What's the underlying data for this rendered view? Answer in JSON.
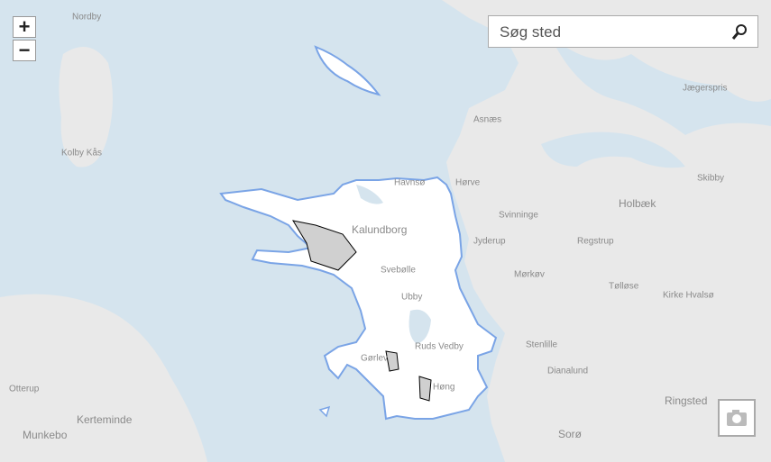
{
  "search": {
    "placeholder": "Søg sted"
  },
  "controls": {
    "zoom_in": "+",
    "zoom_out": "−"
  },
  "map": {
    "labels": [
      "Nordby",
      "Jægerspris",
      "Asnæs",
      "Kolby Kås",
      "Havnsø",
      "Hørve",
      "Holbæk",
      "Kalundborg",
      "Svinninge",
      "Jyderup",
      "Regstrup",
      "Svebølle",
      "Mørkøv",
      "Tølløse",
      "Kirke Hvalsø",
      "Ubby",
      "Ruds Vedby",
      "Gørlev",
      "Høng",
      "Stenlille",
      "Dianalund",
      "Ringsted",
      "Sorø",
      "Otterup",
      "Kerteminde",
      "Munkebo",
      "Skibby"
    ]
  }
}
